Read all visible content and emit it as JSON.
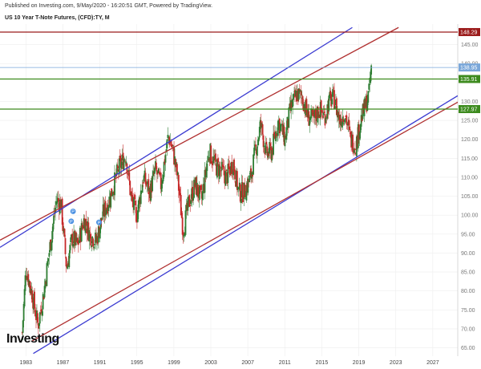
{
  "header": {
    "published": "Published on Investing.com, 9/May/2020 - 16:20:51 GMT, Powered by TradingView.",
    "title": "US 10 Year T-Note Futures, (CFD):TY, M"
  },
  "logo_text": "Investing",
  "colors": {
    "up": "#2e7d32",
    "down": "#c62828",
    "channel_blue": "#3b3bd1",
    "channel_red": "#b03030",
    "level_green": "#3d8b1e",
    "top_red": "#9b1b1b",
    "price_tag": "#7aa7d9",
    "marker": "#4a90e2"
  },
  "chart_data": {
    "type": "candlestick",
    "title": "US 10 Year T-Note Futures, (CFD):TY, M",
    "xlabel": "",
    "ylabel": "",
    "xlim": [
      1980.2,
      2029.7
    ],
    "ylim": [
      62.8,
      150.4
    ],
    "x_ticks": [
      "1983",
      "1987",
      "1991",
      "1995",
      "1999",
      "2003",
      "2007",
      "2011",
      "2015",
      "2019",
      "2023",
      "2027"
    ],
    "x_tick_values": [
      1983,
      1987,
      1991,
      1995,
      1999,
      2003,
      2007,
      2011,
      2015,
      2019,
      2023,
      2027
    ],
    "y_ticks": [
      65,
      70,
      75,
      80,
      85,
      90,
      95,
      100,
      105,
      110,
      115,
      120,
      125,
      130,
      140,
      145
    ],
    "grid": true,
    "price_path": [
      [
        1982.6,
        69
      ],
      [
        1983.0,
        86
      ],
      [
        1983.6,
        80
      ],
      [
        1984.3,
        71
      ],
      [
        1984.9,
        79
      ],
      [
        1985.5,
        90
      ],
      [
        1986.3,
        104
      ],
      [
        1986.8,
        103
      ],
      [
        1987.4,
        86
      ],
      [
        1988.0,
        94
      ],
      [
        1988.6,
        92
      ],
      [
        1989.3,
        99
      ],
      [
        1989.9,
        95
      ],
      [
        1990.6,
        93
      ],
      [
        1991.3,
        100
      ],
      [
        1992.0,
        104
      ],
      [
        1993.0,
        112
      ],
      [
        1993.8,
        116
      ],
      [
        1994.4,
        104
      ],
      [
        1995.0,
        100
      ],
      [
        1995.7,
        110
      ],
      [
        1996.4,
        106
      ],
      [
        1997.0,
        112
      ],
      [
        1997.6,
        108
      ],
      [
        1998.4,
        121
      ],
      [
        1998.9,
        117
      ],
      [
        1999.4,
        110
      ],
      [
        2000.0,
        96
      ],
      [
        2000.6,
        103
      ],
      [
        2001.3,
        108
      ],
      [
        2002.0,
        104
      ],
      [
        2002.8,
        117
      ],
      [
        2003.5,
        113
      ],
      [
        2004.0,
        112
      ],
      [
        2004.7,
        110
      ],
      [
        2005.4,
        114
      ],
      [
        2006.0,
        106
      ],
      [
        2006.6,
        106
      ],
      [
        2007.3,
        110
      ],
      [
        2007.9,
        118
      ],
      [
        2008.4,
        124
      ],
      [
        2009.0,
        116
      ],
      [
        2009.6,
        117
      ],
      [
        2010.3,
        125
      ],
      [
        2011.0,
        120
      ],
      [
        2011.6,
        128
      ],
      [
        2012.3,
        132
      ],
      [
        2012.9,
        131
      ],
      [
        2013.5,
        126
      ],
      [
        2014.1,
        125
      ],
      [
        2014.7,
        128
      ],
      [
        2015.3,
        126
      ],
      [
        2015.8,
        130
      ],
      [
        2016.3,
        131
      ],
      [
        2016.9,
        125
      ],
      [
        2017.5,
        127
      ],
      [
        2018.1,
        120
      ],
      [
        2018.7,
        118.5
      ],
      [
        2019.2,
        125
      ],
      [
        2019.6,
        128
      ],
      [
        2020.1,
        132
      ],
      [
        2020.35,
        138.95
      ]
    ],
    "channel_lines": [
      {
        "name": "",
        "color": "blue",
        "from": [
          1980.2,
          91.5
        ],
        "to": [
          2018.3,
          149.5
        ]
      },
      {
        "name": "",
        "color": "red",
        "from": [
          1980.2,
          93.4
        ],
        "to": [
          2023.3,
          149.5
        ]
      },
      {
        "name": "",
        "color": "blue",
        "from": [
          1983.8,
          63.5
        ],
        "to": [
          2029.7,
          131.5
        ]
      },
      {
        "name": "",
        "color": "red",
        "from": [
          1983.6,
          66.7
        ],
        "to": [
          2029.7,
          129.8
        ]
      }
    ],
    "horizontal_levels": [
      {
        "value": 148.29,
        "label": "148.29",
        "color": "top_red"
      },
      {
        "value": 138.95,
        "label": "138.95",
        "color": "price_tag"
      },
      {
        "value": 135.91,
        "label": "135.91",
        "color": "level_green"
      },
      {
        "value": 127.97,
        "label": "127.97",
        "color": "level_green"
      }
    ],
    "markers": [
      {
        "x": 1988.1,
        "y": 101.0,
        "label": "P"
      },
      {
        "x": 1987.9,
        "y": 98.4,
        "label": "P"
      },
      {
        "x": 1990.9,
        "y": 98.1,
        "label": "P"
      }
    ]
  }
}
